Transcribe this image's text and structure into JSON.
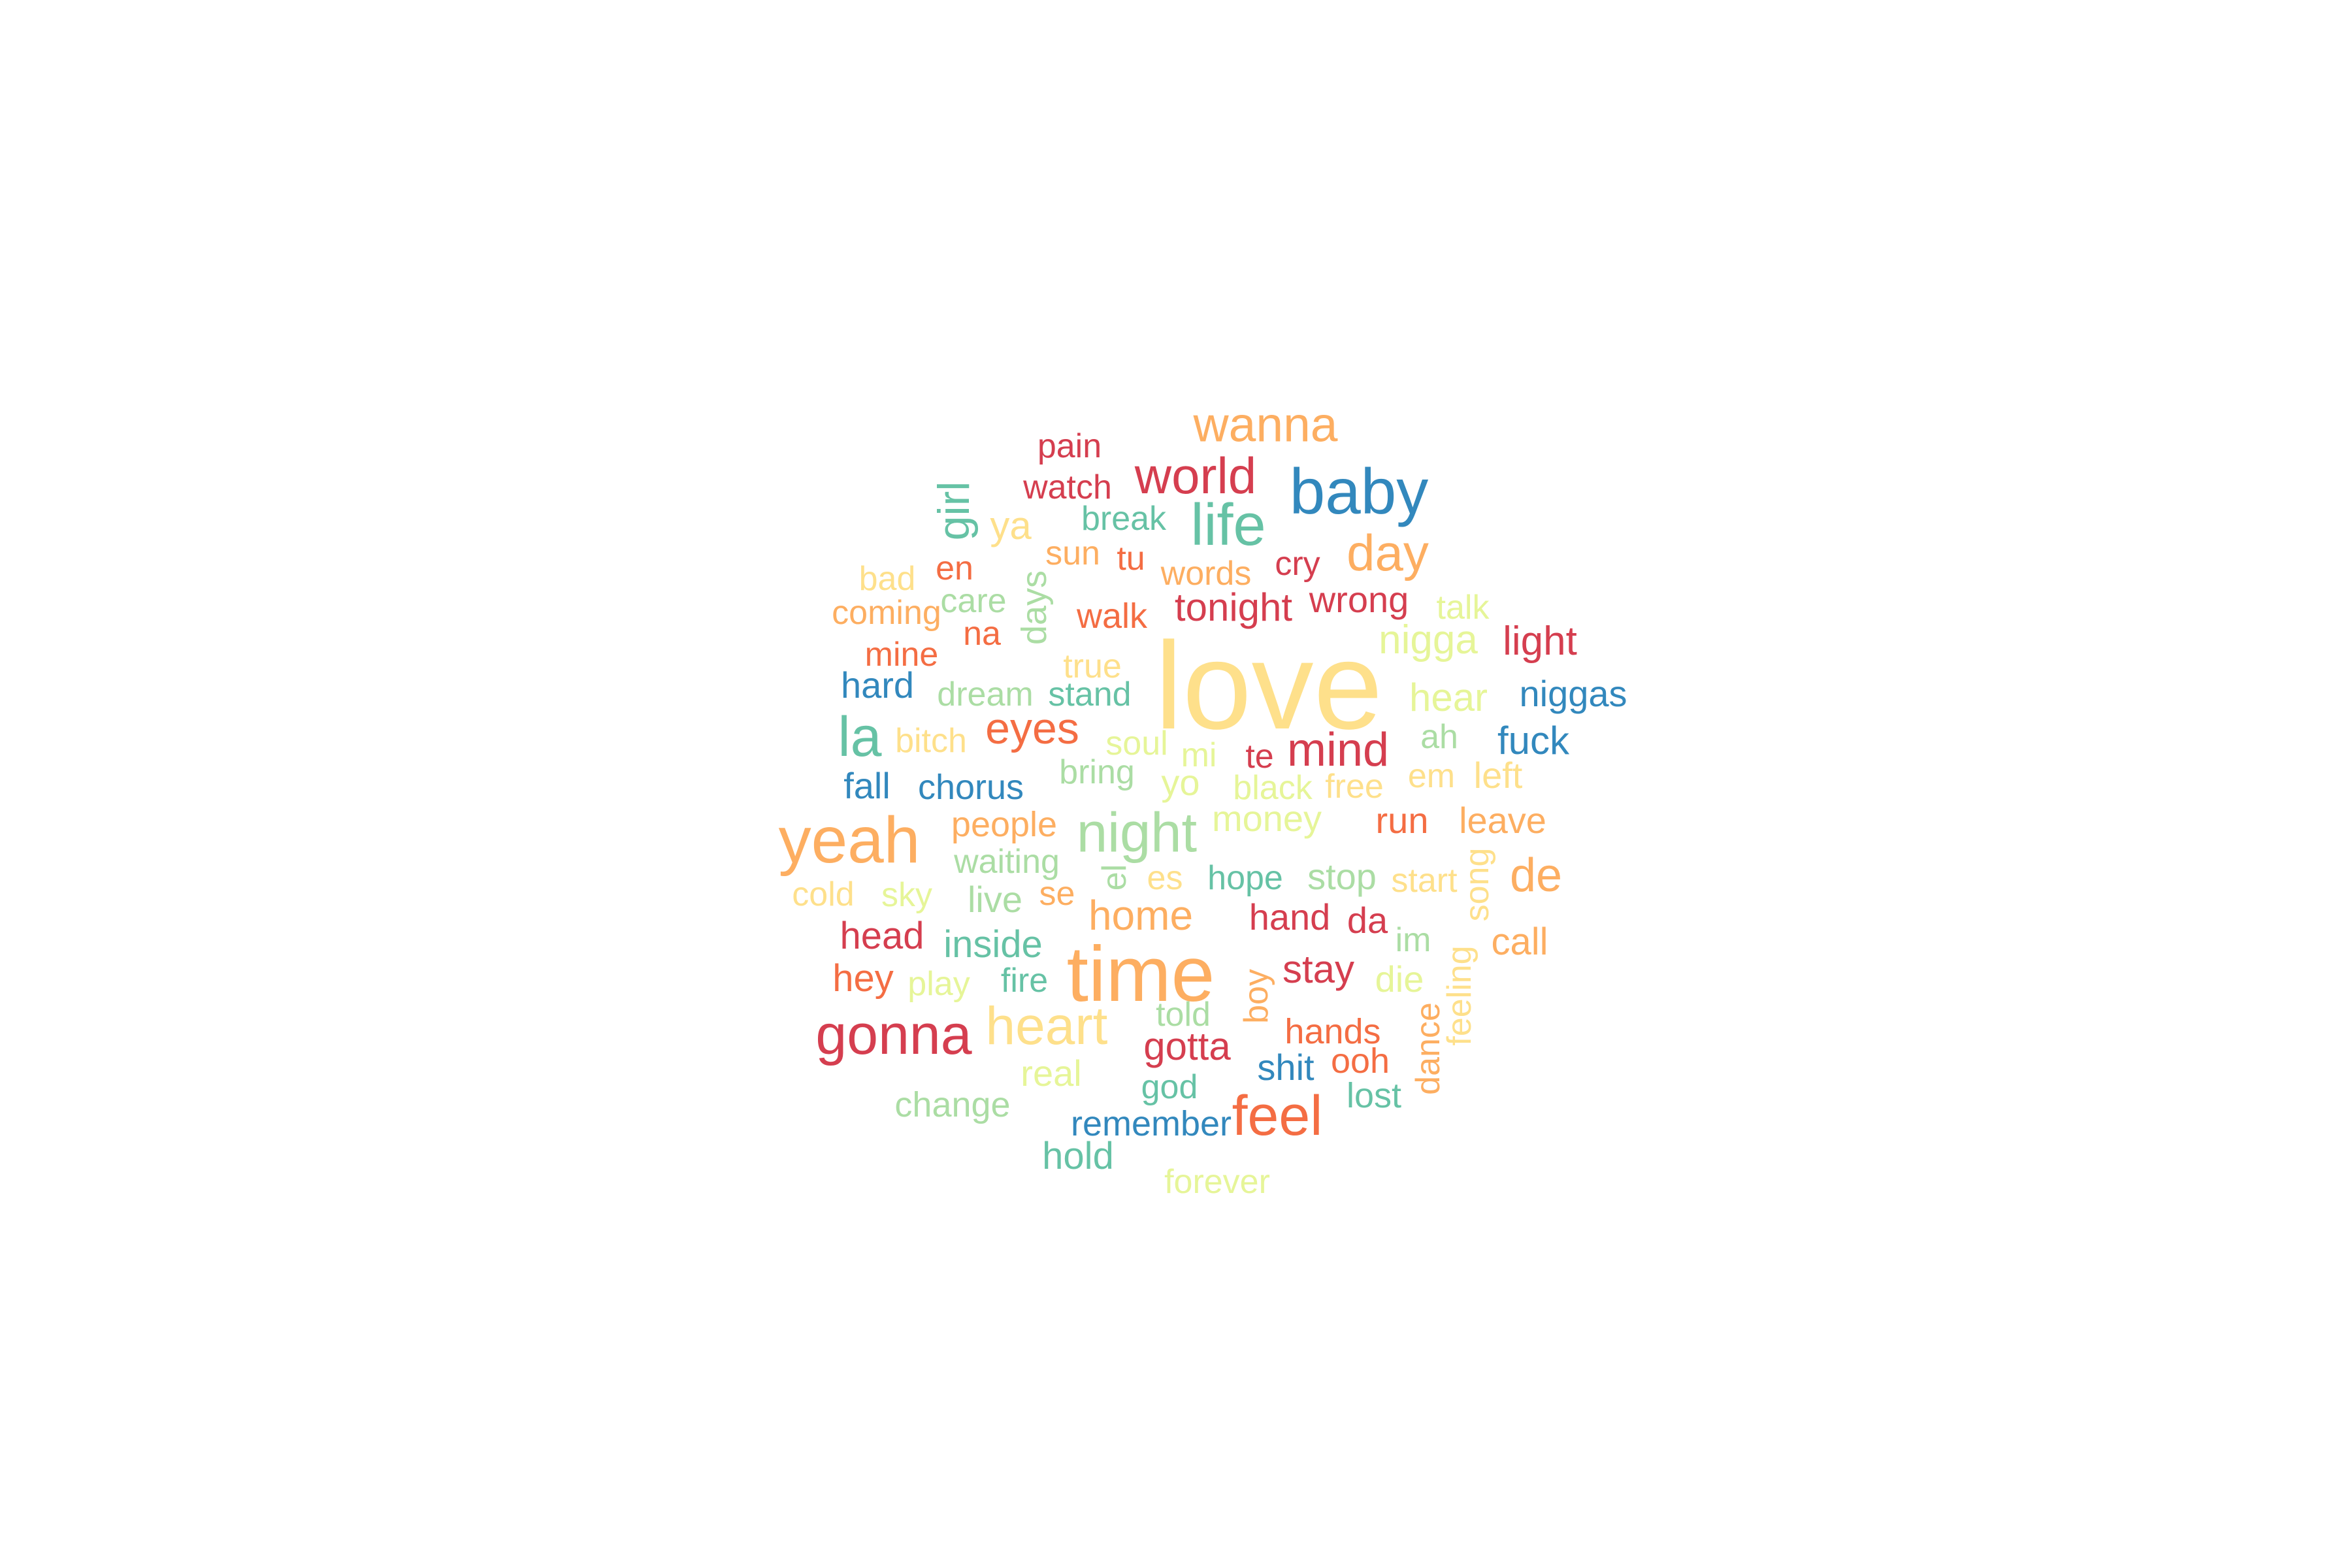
{
  "palette": {
    "red": "#d53e4f",
    "orange": "#f46d43",
    "light_orange": "#fdae61",
    "yellow": "#fee08b",
    "light_green": "#e6f598",
    "green": "#abdda4",
    "teal": "#66c2a5",
    "blue": "#3288bd"
  },
  "words": [
    {
      "text": "love",
      "color": "#fee08b"
    },
    {
      "text": "time",
      "color": "#fdae61"
    },
    {
      "text": "yeah",
      "color": "#fdae61"
    },
    {
      "text": "baby",
      "color": "#3288bd"
    },
    {
      "text": "night",
      "color": "#abdda4"
    },
    {
      "text": "gonna",
      "color": "#d53e4f"
    },
    {
      "text": "heart",
      "color": "#fee08b"
    },
    {
      "text": "feel",
      "color": "#f46d43"
    },
    {
      "text": "wanna",
      "color": "#fdae61"
    },
    {
      "text": "world",
      "color": "#d53e4f"
    },
    {
      "text": "life",
      "color": "#66c2a5"
    },
    {
      "text": "day",
      "color": "#fdae61"
    },
    {
      "text": "la",
      "color": "#66c2a5"
    },
    {
      "text": "girl",
      "color": "#66c2a5"
    },
    {
      "text": "eyes",
      "color": "#f46d43"
    },
    {
      "text": "mind",
      "color": "#d53e4f"
    },
    {
      "text": "de",
      "color": "#fdae61"
    },
    {
      "text": "home",
      "color": "#fdae61"
    },
    {
      "text": "ya",
      "color": "#fee08b"
    },
    {
      "text": "pain",
      "color": "#d53e4f"
    },
    {
      "text": "watch",
      "color": "#d53e4f"
    },
    {
      "text": "break",
      "color": "#66c2a5"
    },
    {
      "text": "sun",
      "color": "#fdae61"
    },
    {
      "text": "tu",
      "color": "#f46d43"
    },
    {
      "text": "words",
      "color": "#fdae61"
    },
    {
      "text": "cry",
      "color": "#d53e4f"
    },
    {
      "text": "bad",
      "color": "#fee08b"
    },
    {
      "text": "en",
      "color": "#f46d43"
    },
    {
      "text": "coming",
      "color": "#fdae61"
    },
    {
      "text": "care",
      "color": "#abdda4"
    },
    {
      "text": "days",
      "color": "#abdda4"
    },
    {
      "text": "walk",
      "color": "#f46d43"
    },
    {
      "text": "tonight",
      "color": "#d53e4f"
    },
    {
      "text": "wrong",
      "color": "#d53e4f"
    },
    {
      "text": "talk",
      "color": "#e6f598"
    },
    {
      "text": "mine",
      "color": "#f46d43"
    },
    {
      "text": "na",
      "color": "#f46d43"
    },
    {
      "text": "nigga",
      "color": "#e6f598"
    },
    {
      "text": "light",
      "color": "#d53e4f"
    },
    {
      "text": "hard",
      "color": "#3288bd"
    },
    {
      "text": "dream",
      "color": "#abdda4"
    },
    {
      "text": "stand",
      "color": "#66c2a5"
    },
    {
      "text": "true",
      "color": "#fee08b"
    },
    {
      "text": "hear",
      "color": "#e6f598"
    },
    {
      "text": "niggas",
      "color": "#3288bd"
    },
    {
      "text": "bitch",
      "color": "#fee08b"
    },
    {
      "text": "soul",
      "color": "#e6f598"
    },
    {
      "text": "mi",
      "color": "#e6f598"
    },
    {
      "text": "te",
      "color": "#d53e4f"
    },
    {
      "text": "ah",
      "color": "#abdda4"
    },
    {
      "text": "fuck",
      "color": "#3288bd"
    },
    {
      "text": "fall",
      "color": "#3288bd"
    },
    {
      "text": "chorus",
      "color": "#3288bd"
    },
    {
      "text": "bring",
      "color": "#abdda4"
    },
    {
      "text": "yo",
      "color": "#e6f598"
    },
    {
      "text": "black",
      "color": "#e6f598"
    },
    {
      "text": "free",
      "color": "#fee08b"
    },
    {
      "text": "em",
      "color": "#fee08b"
    },
    {
      "text": "left",
      "color": "#fee08b"
    },
    {
      "text": "people",
      "color": "#fdae61"
    },
    {
      "text": "money",
      "color": "#e6f598"
    },
    {
      "text": "run",
      "color": "#f46d43"
    },
    {
      "text": "leave",
      "color": "#fdae61"
    },
    {
      "text": "waiting",
      "color": "#abdda4"
    },
    {
      "text": "el",
      "color": "#abdda4"
    },
    {
      "text": "es",
      "color": "#fee08b"
    },
    {
      "text": "hope",
      "color": "#66c2a5"
    },
    {
      "text": "stop",
      "color": "#abdda4"
    },
    {
      "text": "start",
      "color": "#fee08b"
    },
    {
      "text": "song",
      "color": "#fee08b"
    },
    {
      "text": "cold",
      "color": "#fee08b"
    },
    {
      "text": "sky",
      "color": "#e6f598"
    },
    {
      "text": "live",
      "color": "#abdda4"
    },
    {
      "text": "se",
      "color": "#fdae61"
    },
    {
      "text": "hand",
      "color": "#d53e4f"
    },
    {
      "text": "da",
      "color": "#d53e4f"
    },
    {
      "text": "im",
      "color": "#abdda4"
    },
    {
      "text": "call",
      "color": "#fdae61"
    },
    {
      "text": "head",
      "color": "#d53e4f"
    },
    {
      "text": "inside",
      "color": "#66c2a5"
    },
    {
      "text": "stay",
      "color": "#d53e4f"
    },
    {
      "text": "boy",
      "color": "#fdae61"
    },
    {
      "text": "die",
      "color": "#e6f598"
    },
    {
      "text": "feeling",
      "color": "#fee08b"
    },
    {
      "text": "hey",
      "color": "#f46d43"
    },
    {
      "text": "play",
      "color": "#e6f598"
    },
    {
      "text": "fire",
      "color": "#66c2a5"
    },
    {
      "text": "told",
      "color": "#abdda4"
    },
    {
      "text": "hands",
      "color": "#f46d43"
    },
    {
      "text": "dance",
      "color": "#fdae61"
    },
    {
      "text": "gotta",
      "color": "#d53e4f"
    },
    {
      "text": "ooh",
      "color": "#f46d43"
    },
    {
      "text": "shit",
      "color": "#3288bd"
    },
    {
      "text": "real",
      "color": "#e6f598"
    },
    {
      "text": "god",
      "color": "#66c2a5"
    },
    {
      "text": "lost",
      "color": "#66c2a5"
    },
    {
      "text": "change",
      "color": "#abdda4"
    },
    {
      "text": "remember",
      "color": "#3288bd"
    },
    {
      "text": "hold",
      "color": "#66c2a5"
    },
    {
      "text": "forever",
      "color": "#e6f598"
    }
  ]
}
